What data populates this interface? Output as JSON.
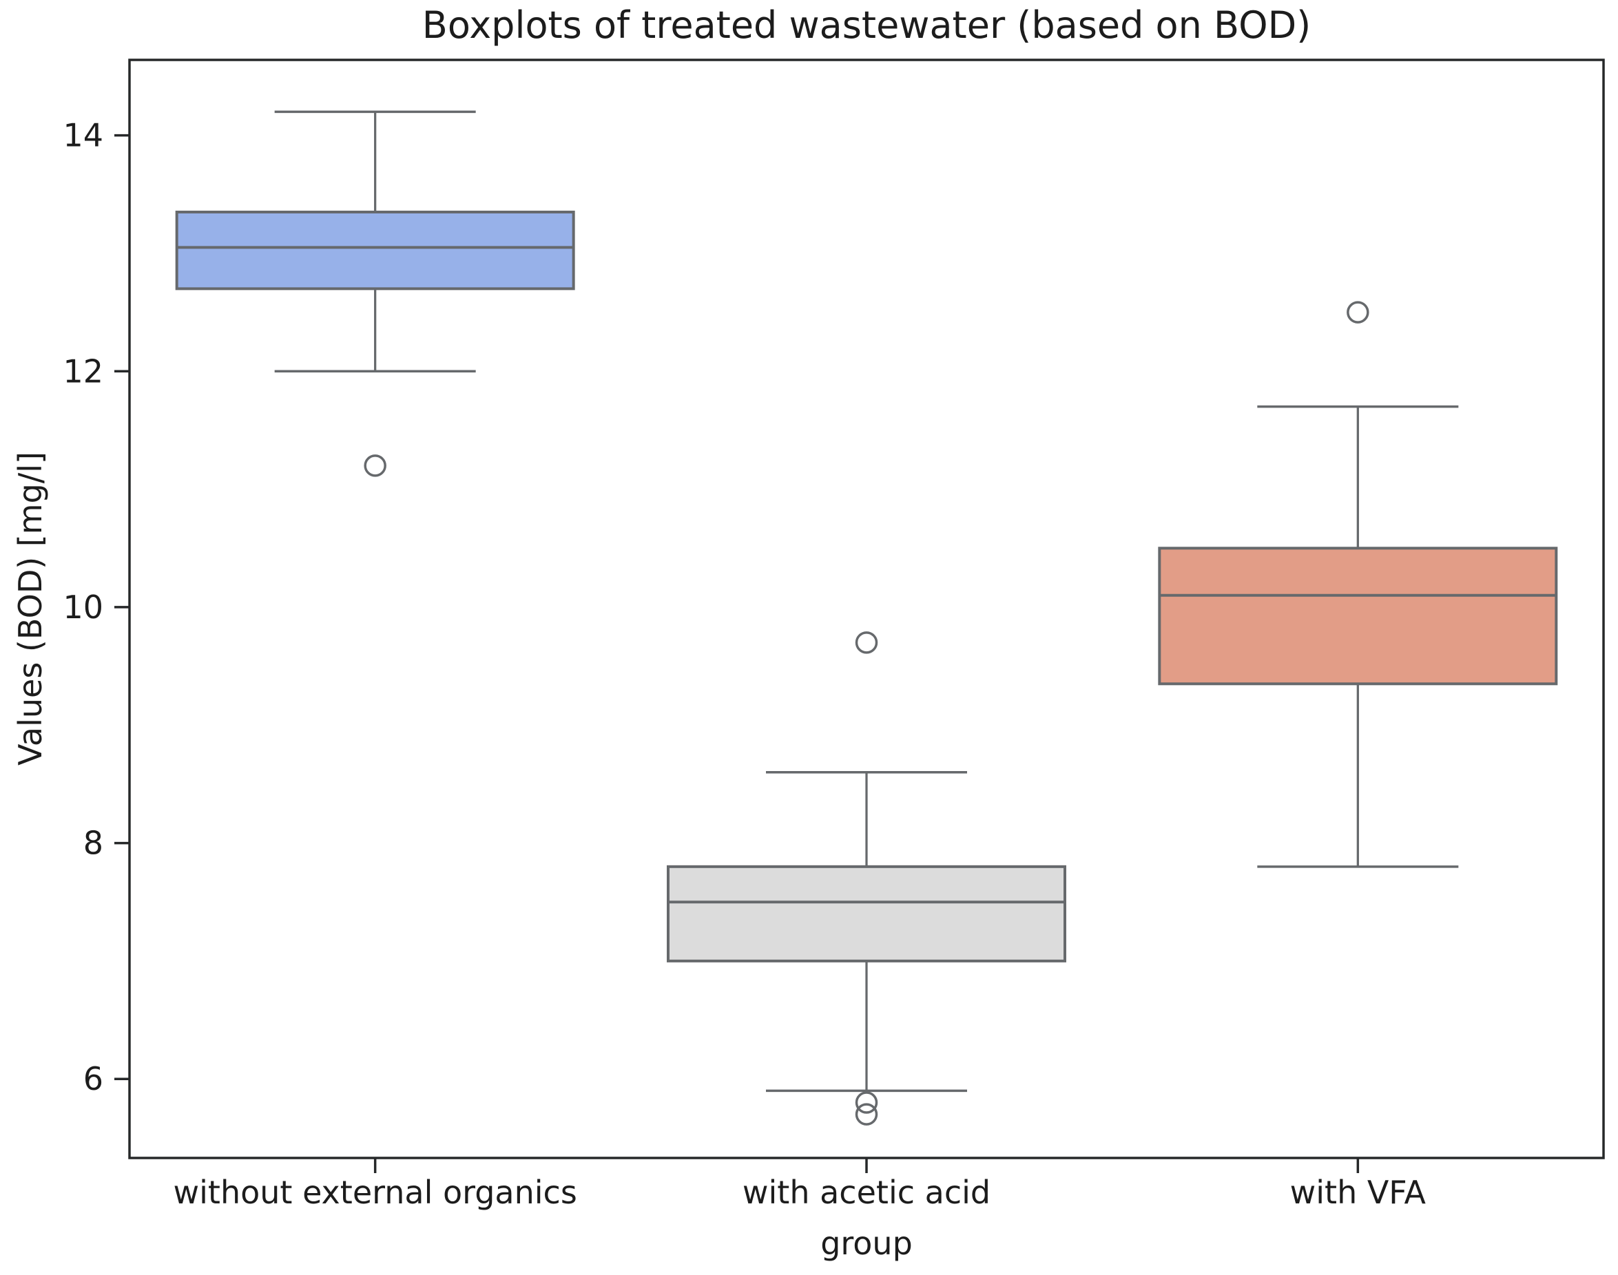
{
  "chart_data": {
    "type": "boxplot",
    "title": "Boxplots of treated wastewater (based on BOD)",
    "xlabel": "group",
    "ylabel": "Values (BOD) [mg/l]",
    "categories": [
      "without external organics",
      "with acetic acid",
      "with VFA"
    ],
    "y_ticks": [
      6,
      8,
      10,
      12,
      14
    ],
    "ylim": [
      5.33,
      14.64
    ],
    "grid": false,
    "legend": "none",
    "series": [
      {
        "category": "without external organics",
        "whisker_low": 12.0,
        "q1": 12.7,
        "median": 13.05,
        "q3": 13.35,
        "whisker_high": 14.2,
        "outliers": [
          11.2
        ],
        "fill_color": "#97b1e9"
      },
      {
        "category": "with acetic acid",
        "whisker_low": 5.9,
        "q1": 7.0,
        "median": 7.5,
        "q3": 7.8,
        "whisker_high": 8.6,
        "outliers": [
          9.7,
          5.8,
          5.7
        ],
        "fill_color": "#dcdcdc"
      },
      {
        "category": "with VFA",
        "whisker_low": 7.8,
        "q1": 9.35,
        "median": 10.1,
        "q3": 10.5,
        "whisker_high": 11.7,
        "outliers": [
          12.5
        ],
        "fill_color": "#e29d87"
      }
    ],
    "colors": {
      "box_edge": "#66696c",
      "spine": "#262829",
      "text": "#1c1c1c",
      "background": "#ffffff"
    }
  }
}
